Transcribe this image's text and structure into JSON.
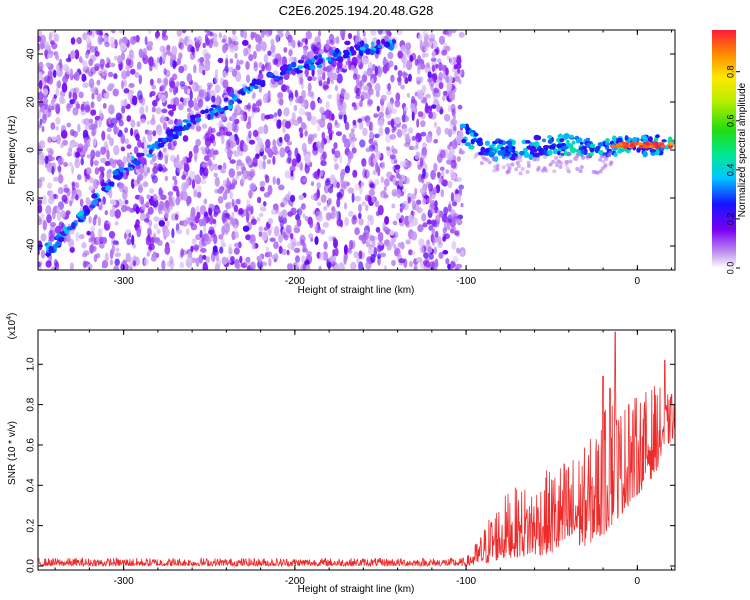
{
  "title": "C2E6.2025.194.20.48.G28",
  "chart_data": [
    {
      "type": "heatmap",
      "xlabel": "Height of straight line (km)",
      "ylabel": "Frequency (Hz)",
      "xlim": [
        -350,
        22
      ],
      "ylim": [
        -50,
        50
      ],
      "xticks": [
        "-300",
        "-200",
        "-100",
        "0"
      ],
      "xtick_values": [
        -300,
        -200,
        -100,
        0
      ],
      "yticks": [
        "-40",
        "-20",
        "0",
        "20",
        "40"
      ],
      "ytick_values": [
        -40,
        -20,
        0,
        20,
        40
      ],
      "noise_region_x": [
        -350,
        -102
      ],
      "colorbar": {
        "label": "Normalized spectral amplitude",
        "range": [
          0,
          0.97
        ],
        "ticks": [
          "0.0",
          "0.2",
          "0.4",
          "0.6",
          "0.8"
        ],
        "tick_values": [
          0.0,
          0.2,
          0.4,
          0.6,
          0.8
        ]
      },
      "ridges": [
        {
          "points": [
            [
              -347,
              -43
            ],
            [
              -338,
              -38
            ],
            [
              -325,
              -28
            ],
            [
              -310,
              -15
            ],
            [
              -295,
              -5
            ],
            [
              -280,
              2
            ],
            [
              -265,
              10
            ],
            [
              -250,
              15
            ],
            [
              -235,
              21
            ],
            [
              -220,
              28
            ],
            [
              -205,
              33
            ],
            [
              -190,
              36
            ],
            [
              -165,
              42
            ],
            [
              -140,
              44
            ]
          ],
          "value": 0.3
        },
        {
          "points": [
            [
              -102,
              8
            ],
            [
              -95,
              3
            ],
            [
              -85,
              0
            ],
            [
              -70,
              0
            ],
            [
              -55,
              2
            ],
            [
              -40,
              2
            ],
            [
              -25,
              1
            ],
            [
              -15,
              2
            ],
            [
              0,
              2
            ],
            [
              22,
              2
            ]
          ],
          "value": 0.35
        },
        {
          "points": [
            [
              -15,
              2
            ],
            [
              0,
              2
            ],
            [
              20,
              2
            ]
          ],
          "value": 0.95
        }
      ]
    },
    {
      "type": "line",
      "xlabel": "Height of straight line (km)",
      "ylabel": "SNR (10 * v/v)",
      "multiplier": "(x10",
      "multiplier_exp": "4",
      "xlim": [
        -350,
        22
      ],
      "ylim": [
        -0.02,
        1.17
      ],
      "xticks": [
        "-300",
        "-200",
        "-100",
        "0"
      ],
      "xtick_values": [
        -300,
        -200,
        -100,
        0
      ],
      "yticks": [
        "0.0",
        "0.2",
        "0.4",
        "0.6",
        "0.8",
        "1.0"
      ],
      "ytick_values": [
        0.0,
        0.2,
        0.4,
        0.6,
        0.8,
        1.0
      ],
      "color": "#ee2b2b",
      "envelope": {
        "x": [
          -350,
          -100,
          -92,
          -85,
          -75,
          -60,
          -50,
          -40,
          -30,
          -20,
          -15,
          -10,
          0,
          10,
          15,
          22
        ],
        "low": [
          0.0,
          0.0,
          0.0,
          0.02,
          0.04,
          0.05,
          0.06,
          0.08,
          0.1,
          0.15,
          0.2,
          0.25,
          0.35,
          0.45,
          0.55,
          0.65
        ],
        "high": [
          0.04,
          0.04,
          0.15,
          0.28,
          0.38,
          0.42,
          0.5,
          0.55,
          0.6,
          0.75,
          0.9,
          0.8,
          0.85,
          0.9,
          0.88,
          0.82
        ],
        "peaks": [
          [
            -20,
            0.94
          ],
          [
            -16,
            0.88
          ],
          [
            -13,
            1.16
          ],
          [
            -5,
            0.8
          ],
          [
            16,
            1.02
          ],
          [
            20,
            0.85
          ]
        ]
      }
    }
  ]
}
